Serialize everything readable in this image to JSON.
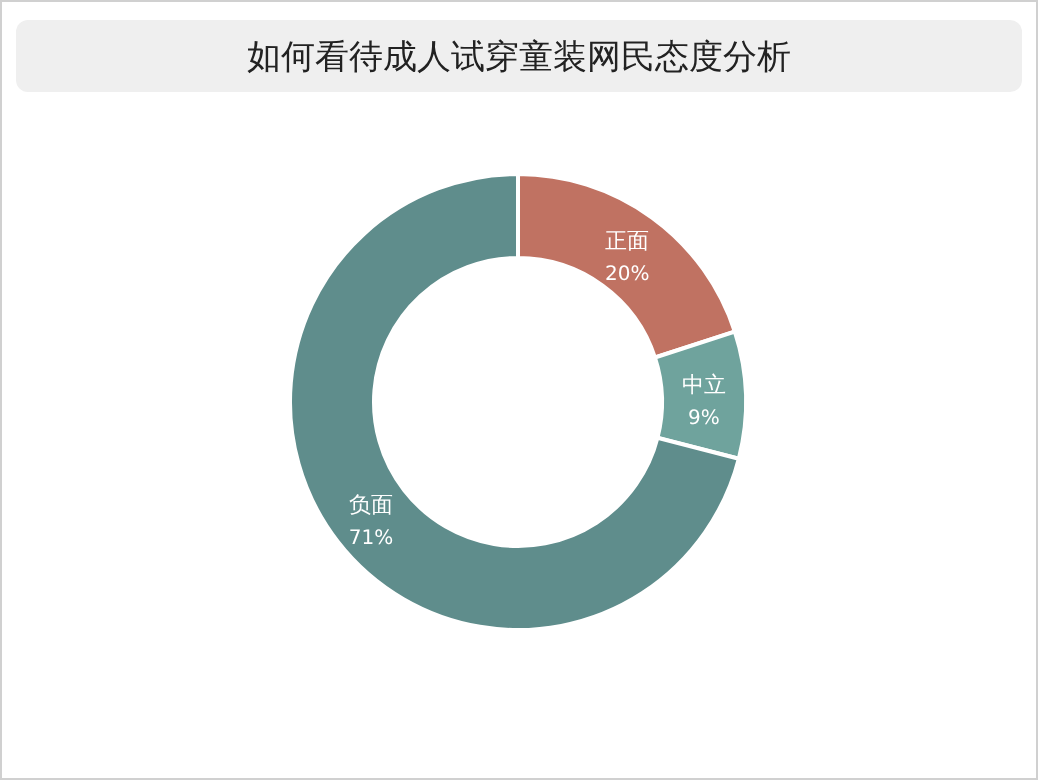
{
  "chart_data": {
    "type": "donut",
    "title": "如何看待成人试穿童装网民态度分析",
    "categories": [
      "正面",
      "中立",
      "负面"
    ],
    "values": [
      20,
      9,
      71
    ],
    "value_labels": [
      "20%",
      "9%",
      "71%"
    ],
    "colors": [
      "#c07262",
      "#6fa39d",
      "#5f8d8c"
    ]
  }
}
